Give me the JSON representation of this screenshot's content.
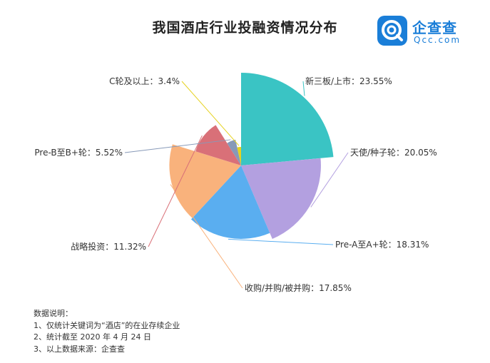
{
  "brand": {
    "name": "企查查",
    "sub": "Qcc.com",
    "color": "#1a7ed8",
    "icon": "qcc-logo-icon"
  },
  "chart_data": {
    "type": "pie",
    "variant": "rose",
    "title": "我国酒店行业投融资情况分布",
    "slices": [
      {
        "label": "新三板/上市",
        "value": 23.55,
        "color": "#3ac4c4",
        "text": "新三板/上市：23.55%"
      },
      {
        "label": "天使/种子轮",
        "value": 20.05,
        "color": "#b3a0e0",
        "text": "天使/种子轮：20.05%"
      },
      {
        "label": "Pre-A至A+轮",
        "value": 18.31,
        "color": "#5aaef0",
        "text": "Pre-A至A+轮：18.31%"
      },
      {
        "label": "收购/并购/被并购",
        "value": 17.85,
        "color": "#f9b27c",
        "text": "收购/并购/被并购：17.85%"
      },
      {
        "label": "战略投资",
        "value": 11.32,
        "color": "#d97078",
        "text": "战略投资：11.32%"
      },
      {
        "label": "Pre-B至B+轮",
        "value": 5.52,
        "color": "#8799b8",
        "text": "Pre-B至B+轮：5.52%"
      },
      {
        "label": "C轮及以上",
        "value": 3.4,
        "color": "#e6d21f",
        "text": "C轮及以上：3.4%"
      }
    ]
  },
  "notes": {
    "heading": "数据说明：",
    "lines": [
      "1、仅统计关键词为“酒店”的在业存续企业",
      "2、统计截至 2020 年 4 月 24 日",
      "3、以上数据来源：企查查"
    ]
  }
}
